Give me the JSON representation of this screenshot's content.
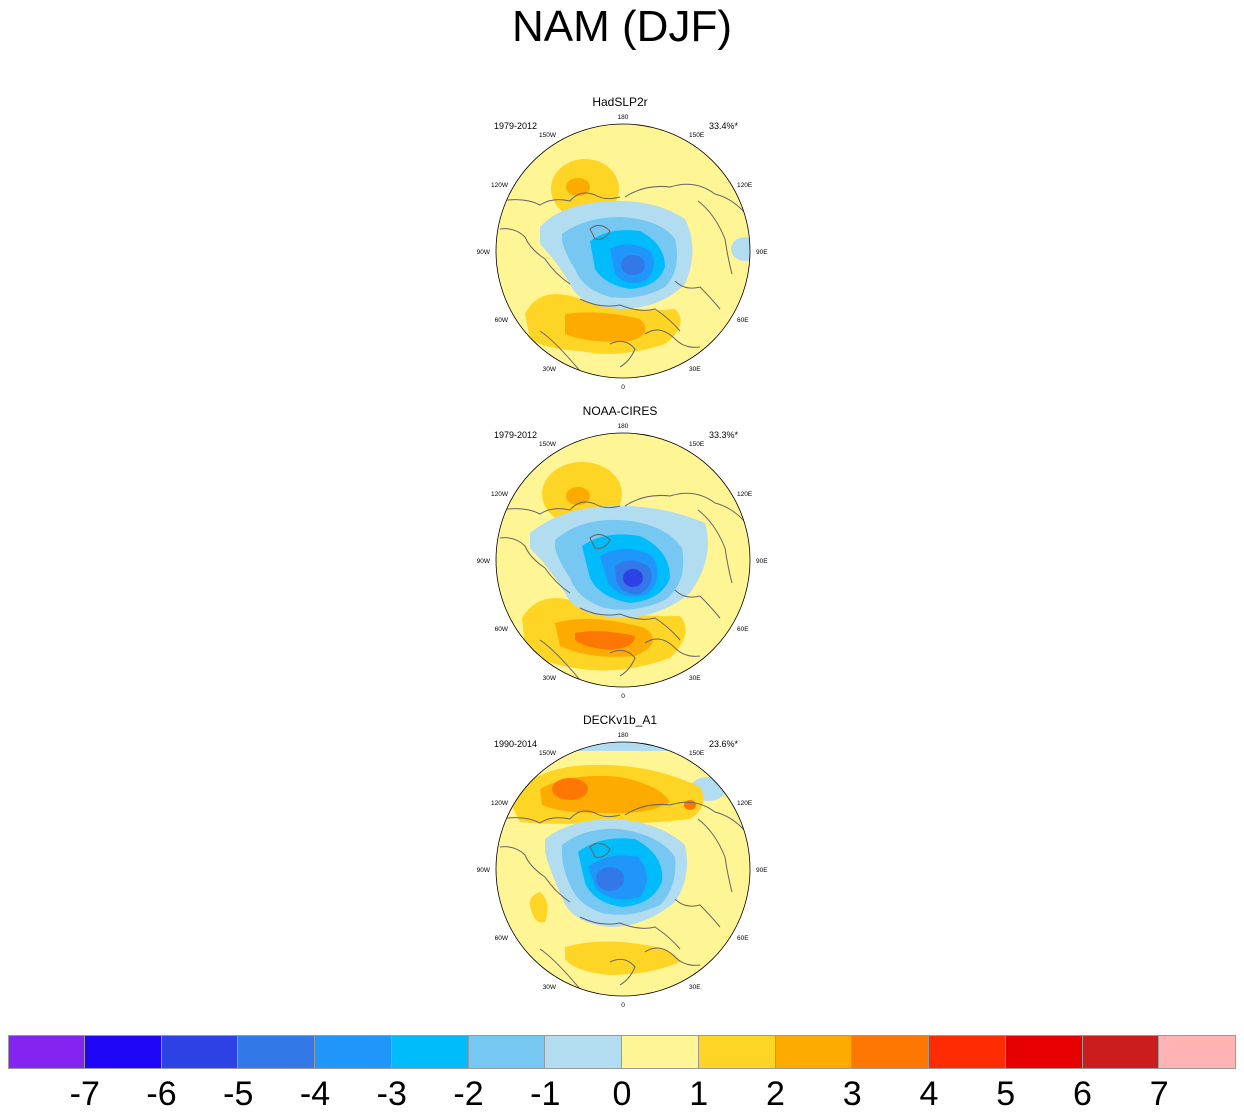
{
  "title": "NAM (DJF)",
  "lon_labels": [
    "180",
    "150E",
    "120E",
    "90E",
    "60E",
    "30E",
    "0",
    "30W",
    "60W",
    "90W",
    "120W",
    "150W"
  ],
  "panels": [
    {
      "name": "HadSLP2r",
      "period": "1979-2012",
      "variance": "33.4%*"
    },
    {
      "name": "NOAA-CIRES",
      "period": "1979-2012",
      "variance": "33.3%*"
    },
    {
      "name": "DECKv1b_A1",
      "period": "1990-2014",
      "variance": "23.6%*"
    }
  ],
  "colorbar": {
    "colors": [
      "#8424f0",
      "#1f06f5",
      "#2c42e4",
      "#3378e8",
      "#1e96fa",
      "#00bcfa",
      "#76c8f2",
      "#b2dcf0",
      "#fff595",
      "#fed425",
      "#fdab00",
      "#fe7702",
      "#fe2c00",
      "#e70000",
      "#cb1d1d",
      "#ffb3b3"
    ],
    "labels": [
      "-7",
      "-6",
      "-5",
      "-4",
      "-3",
      "-2",
      "-1",
      "0",
      "1",
      "2",
      "3",
      "4",
      "5",
      "6",
      "7"
    ]
  }
}
